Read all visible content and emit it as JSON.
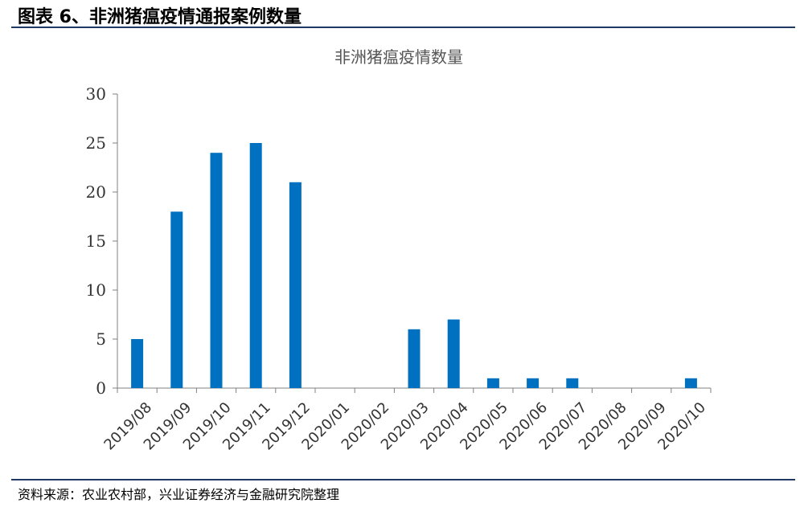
{
  "figure": {
    "title": "图表 6、非洲猪瘟疫情通报案例数量",
    "source": "资料来源：农业农村部，兴业证券经济与金融研究院整理"
  },
  "chart_data": {
    "type": "bar",
    "title": "非洲猪瘟疫情数量",
    "xlabel": "",
    "ylabel": "",
    "categories": [
      "2019/08",
      "2019/09",
      "2019/10",
      "2019/11",
      "2019/12",
      "2020/01",
      "2020/02",
      "2020/03",
      "2020/04",
      "2020/05",
      "2020/06",
      "2020/07",
      "2020/08",
      "2020/09",
      "2020/10"
    ],
    "values": [
      5,
      18,
      24,
      25,
      21,
      0,
      0,
      6,
      7,
      1,
      1,
      1,
      0,
      0,
      1
    ],
    "ylim": [
      0,
      30
    ],
    "yticks": [
      0,
      5,
      10,
      15,
      20,
      25,
      30
    ],
    "grid": false,
    "legend": "none",
    "bar_color": "#0070c0",
    "axis_color": "#808080"
  }
}
